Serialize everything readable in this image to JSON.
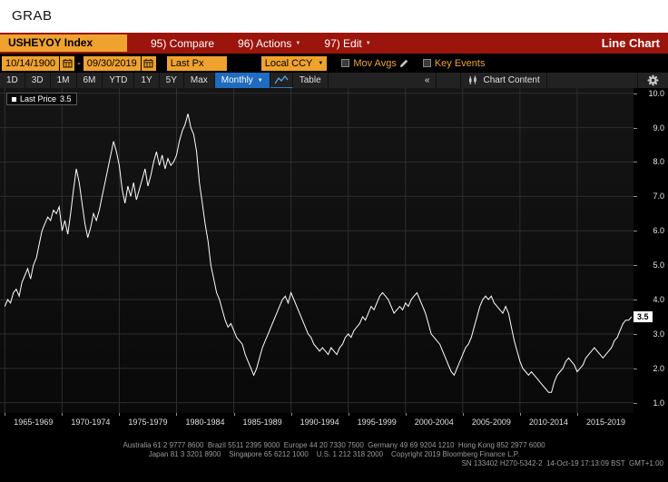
{
  "grab": {
    "title": "GRAB"
  },
  "header": {
    "security": "USHEYOY Index",
    "compare_label": "95) Compare",
    "actions_label": "96) Actions",
    "edit_label": "97) Edit",
    "chart_title": "Line Chart"
  },
  "controls": {
    "date_from": "10/14/1900",
    "date_separator": "-",
    "date_to": "09/30/2019",
    "price_field": "Last Px",
    "currency": "Local CCY",
    "mov_avgs_label": "Mov Avgs",
    "key_events_label": "Key Events"
  },
  "toolbar": {
    "periods": [
      "1D",
      "3D",
      "1M",
      "6M",
      "YTD",
      "1Y",
      "5Y",
      "Max"
    ],
    "frequency": "Monthly",
    "table_label": "Table",
    "collapse_label": "«",
    "chart_content_label": "Chart Content"
  },
  "legend": {
    "series_label": "Last Price",
    "value": "3.5"
  },
  "chart_data": {
    "type": "line",
    "title": "USHEYOY Index - Last Price, Monthly, 10/14/1900 - 09/30/2019",
    "series_name": "Last Price",
    "last_price": 3.5,
    "x_start": 1965.0,
    "x_step": 0.25,
    "values": [
      3.8,
      4.0,
      3.9,
      4.2,
      4.3,
      4.1,
      4.5,
      4.7,
      4.9,
      4.6,
      5.0,
      5.2,
      5.6,
      6.0,
      6.2,
      6.4,
      6.3,
      6.6,
      6.5,
      6.7,
      6.0,
      6.3,
      5.9,
      6.5,
      7.2,
      7.8,
      7.4,
      6.8,
      6.2,
      5.8,
      6.1,
      6.5,
      6.3,
      6.6,
      7.0,
      7.4,
      7.8,
      8.2,
      8.6,
      8.3,
      7.9,
      7.2,
      6.8,
      7.3,
      7.0,
      7.4,
      6.9,
      7.2,
      7.5,
      7.8,
      7.3,
      7.6,
      8.0,
      8.3,
      7.9,
      8.2,
      7.8,
      8.1,
      7.9,
      8.0,
      8.2,
      8.6,
      8.9,
      9.1,
      9.4,
      9.0,
      8.8,
      8.3,
      7.4,
      6.8,
      6.2,
      5.7,
      5.0,
      4.6,
      4.2,
      4.0,
      3.7,
      3.4,
      3.2,
      3.3,
      3.1,
      2.9,
      2.8,
      2.7,
      2.4,
      2.2,
      2.0,
      1.8,
      2.0,
      2.3,
      2.6,
      2.8,
      3.0,
      3.2,
      3.4,
      3.6,
      3.8,
      4.0,
      4.1,
      3.9,
      4.2,
      4.0,
      3.8,
      3.6,
      3.4,
      3.2,
      3.0,
      2.9,
      2.7,
      2.6,
      2.5,
      2.6,
      2.5,
      2.4,
      2.6,
      2.5,
      2.4,
      2.6,
      2.7,
      2.9,
      3.0,
      2.9,
      3.1,
      3.2,
      3.3,
      3.5,
      3.4,
      3.6,
      3.8,
      3.7,
      3.9,
      4.1,
      4.2,
      4.1,
      4.0,
      3.8,
      3.6,
      3.7,
      3.8,
      3.7,
      3.9,
      3.8,
      4.0,
      4.1,
      4.2,
      4.0,
      3.8,
      3.6,
      3.3,
      3.0,
      2.9,
      2.8,
      2.7,
      2.5,
      2.3,
      2.1,
      1.9,
      1.8,
      2.0,
      2.2,
      2.4,
      2.6,
      2.7,
      2.9,
      3.2,
      3.5,
      3.8,
      4.0,
      4.1,
      4.0,
      4.1,
      3.9,
      3.8,
      3.7,
      3.6,
      3.8,
      3.6,
      3.2,
      2.8,
      2.5,
      2.2,
      2.0,
      1.9,
      1.8,
      1.9,
      1.8,
      1.7,
      1.6,
      1.5,
      1.4,
      1.3,
      1.3,
      1.6,
      1.8,
      1.9,
      2.0,
      2.2,
      2.3,
      2.2,
      2.1,
      1.9,
      2.0,
      2.1,
      2.3,
      2.4,
      2.5,
      2.6,
      2.5,
      2.4,
      2.3,
      2.4,
      2.5,
      2.6,
      2.8,
      2.9,
      3.1,
      3.3,
      3.4,
      3.4,
      3.5
    ],
    "xlim": [
      1964.58,
      2019.92
    ],
    "ylim": [
      0.7,
      10.15
    ],
    "y_ticks": [
      1.0,
      2.0,
      3.0,
      4.0,
      5.0,
      6.0,
      7.0,
      8.0,
      9.0,
      10.0
    ],
    "x_gridlines": [
      1965,
      1970,
      1975,
      1980,
      1985,
      1990,
      1995,
      2000,
      2005,
      2010,
      2015
    ],
    "x_tick_centers": [
      1967.5,
      1972.5,
      1977.5,
      1982.5,
      1987.5,
      1992.5,
      1997.5,
      2002.5,
      2007.5,
      2012.5,
      2017.5
    ],
    "x_tick_labels": [
      "1965-1969",
      "1970-1974",
      "1975-1979",
      "1980-1984",
      "1985-1989",
      "1990-1994",
      "1995-1999",
      "2000-2004",
      "2005-2009",
      "2010-2014",
      "2015-2019"
    ],
    "grid": true,
    "legend_position": "top-left",
    "line_color": "#ffffff",
    "grid_color": "#2e2e2e"
  },
  "footer": {
    "line1": "Australia 61 2 9777 8600  Brazil 5511 2395 9000  Europe 44 20 7330 7500  Germany 49 69 9204 1210  Hong Kong 852 2977 6000",
    "line2": "Japan 81 3 3201 8900    Singapore 65 6212 1000    U.S. 1 212 318 2000    Copyright 2019 Bloomberg Finance L.P.",
    "line3": "SN 133402 H270-5342-2  14-Oct-19 17:13:09 BST  GMT+1:00"
  },
  "colors": {
    "amber": "#f0a22e",
    "menu_red": "#9b150c",
    "highlight_blue": "#1f6cc0",
    "line": "#ffffff",
    "grid": "#2e2e2e",
    "badge_bg": "#ffffff"
  }
}
